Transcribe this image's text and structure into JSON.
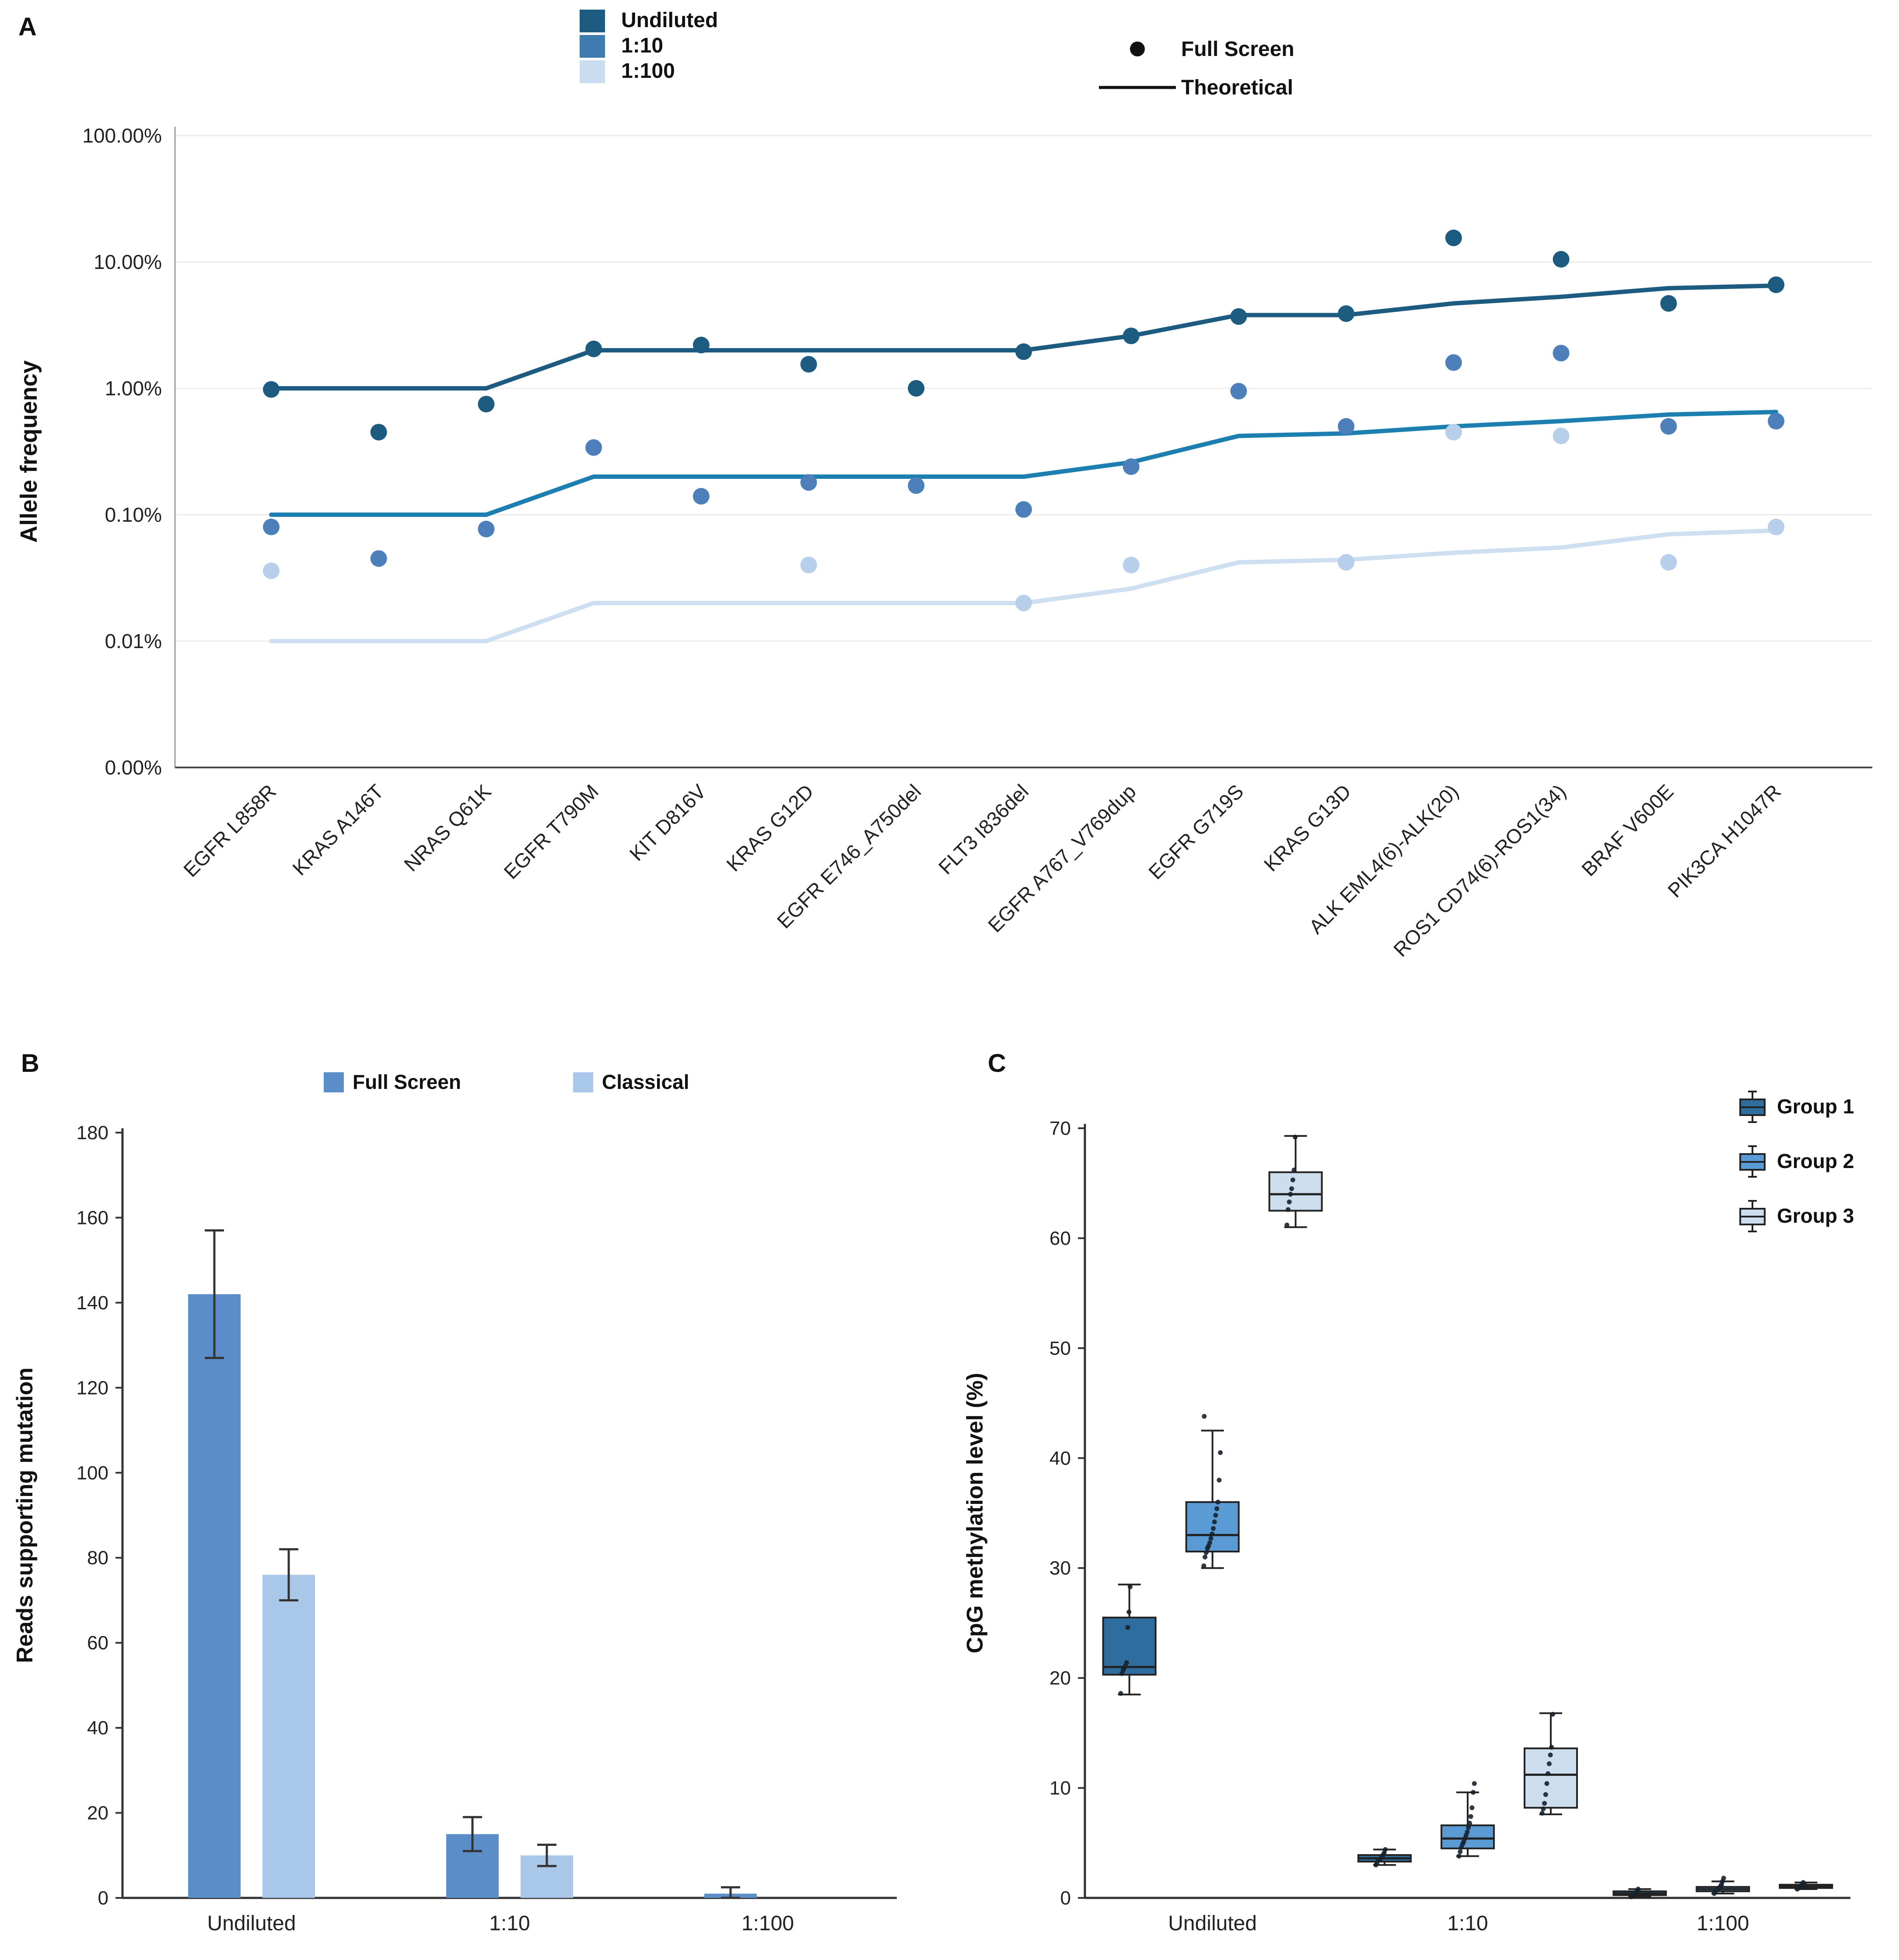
{
  "panels": {
    "a": {
      "label": "A"
    },
    "b": {
      "label": "B"
    },
    "c": {
      "label": "C"
    }
  },
  "chart_data": [
    {
      "panel": "A",
      "type": "scatter",
      "ylabel": "Allele frequency",
      "yscale": "log",
      "grid": true,
      "yticks": [
        {
          "value": 100,
          "label": "100.00%"
        },
        {
          "value": 10,
          "label": "10.00%"
        },
        {
          "value": 1,
          "label": "1.00%"
        },
        {
          "value": 0.1,
          "label": "0.10%"
        },
        {
          "value": 0.01,
          "label": "0.01%"
        },
        {
          "value": 0,
          "label": "0.00%"
        }
      ],
      "categories": [
        "EGFR L858R",
        "KRAS A146T",
        "NRAS Q61K",
        "EGFR T790M",
        "KIT D816V",
        "KRAS G12D",
        "EGFR E746_A750del",
        "FLT3 I836del",
        "EGFR A767_V769dup",
        "EGFR G719S",
        "KRAS G13D",
        "ALK EML4(6)-ALK(20)",
        "ROS1 CD74(6)-ROS1(34)",
        "BRAF V600E",
        "PIK3CA H1047R"
      ],
      "legend": {
        "colors": [
          {
            "label": "Undiluted",
            "color": "#1d5c80"
          },
          {
            "label": "1:10",
            "color": "#3f7ab0"
          },
          {
            "label": "1:100",
            "color": "#c9dcf0"
          }
        ],
        "markers": [
          {
            "label": "Full Screen",
            "type": "dot"
          },
          {
            "label": "Theoretical",
            "type": "line"
          }
        ]
      },
      "series": [
        {
          "name": "Undiluted",
          "dot_color": "#1d5c80",
          "line_color": "#1d5c80",
          "theoretical_pct": [
            1,
            1,
            1,
            2,
            2,
            2,
            2,
            2,
            2.6,
            3.8,
            3.8,
            4.7,
            5.3,
            6.2,
            6.5
          ],
          "measured_pct": [
            0.98,
            0.45,
            0.75,
            2.05,
            2.2,
            1.55,
            1.0,
            1.95,
            2.6,
            3.7,
            3.9,
            15.5,
            10.5,
            4.7,
            6.6
          ]
        },
        {
          "name": "1:10",
          "dot_color": "#4d7fba",
          "line_color": "#1d7fb0",
          "theoretical_pct": [
            0.1,
            0.1,
            0.1,
            0.2,
            0.2,
            0.2,
            0.2,
            0.2,
            0.26,
            0.42,
            0.44,
            0.5,
            0.55,
            0.62,
            0.65
          ],
          "measured_pct": [
            0.08,
            0.045,
            0.077,
            0.34,
            0.14,
            0.18,
            0.17,
            0.11,
            0.24,
            0.95,
            0.5,
            1.6,
            1.9,
            0.5,
            0.55
          ]
        },
        {
          "name": "1:100",
          "dot_color": "#b7cfea",
          "line_color": "#cfdff2",
          "theoretical_pct": [
            0.01,
            0.01,
            0.01,
            0.02,
            0.02,
            0.02,
            0.02,
            0.02,
            0.026,
            0.042,
            0.044,
            0.05,
            0.055,
            0.07,
            0.075
          ],
          "measured_pct": [
            0.036,
            null,
            null,
            null,
            null,
            0.04,
            null,
            0.02,
            0.04,
            null,
            0.042,
            0.45,
            0.42,
            0.042,
            0.08
          ]
        }
      ]
    },
    {
      "panel": "B",
      "type": "bar",
      "ylabel": "Reads supporting mutation",
      "ylim": [
        0,
        180
      ],
      "ytick_step": 20,
      "categories": [
        "Undiluted",
        "1:10",
        "1:100"
      ],
      "series": [
        {
          "name": "Full Screen",
          "color": "#5b8ec9",
          "values": [
            142,
            15,
            1
          ],
          "errors": [
            15,
            4,
            1.5
          ]
        },
        {
          "name": "Classical",
          "color": "#a9c7e8",
          "values": [
            76,
            10,
            0
          ],
          "errors": [
            6,
            2.5,
            0
          ]
        }
      ]
    },
    {
      "panel": "C",
      "type": "boxplot",
      "ylabel": "CpG methylation level (%)",
      "ylim": [
        0,
        70
      ],
      "ytick_step": 10,
      "categories": [
        "Undiluted",
        "1:10",
        "1:100"
      ],
      "legend": [
        {
          "label": "Group 1",
          "color": "#2f6d9e"
        },
        {
          "label": "Group 2",
          "color": "#5b9bd5"
        },
        {
          "label": "Group 3",
          "color": "#ccdded"
        }
      ],
      "groups": [
        {
          "name": "Group 1",
          "color": "#2f6d9e",
          "boxes": [
            {
              "lo": 18.5,
              "q1": 20.3,
              "med": 21.0,
              "q3": 25.5,
              "hi": 28.5,
              "points": [
                18.6,
                20.4,
                20.7,
                20.9,
                21.1,
                21.4,
                24.6,
                26.0,
                28.3
              ]
            },
            {
              "lo": 3.0,
              "q1": 3.3,
              "med": 3.6,
              "q3": 3.9,
              "hi": 4.4,
              "points": [
                3.0,
                3.2,
                3.4,
                3.5,
                3.6,
                3.7,
                3.9,
                4.1,
                4.4
              ]
            },
            {
              "lo": 0.1,
              "q1": 0.25,
              "med": 0.4,
              "q3": 0.6,
              "hi": 0.8,
              "points": [
                0.1,
                0.2,
                0.3,
                0.4,
                0.5,
                0.6,
                0.8
              ]
            }
          ]
        },
        {
          "name": "Group 2",
          "color": "#5b9bd5",
          "boxes": [
            {
              "lo": 30.0,
              "q1": 31.5,
              "med": 33.0,
              "q3": 36.0,
              "hi": 42.5,
              "points": [
                30.2,
                31.0,
                31.4,
                31.8,
                32.0,
                32.3,
                32.7,
                33.1,
                33.6,
                34.2,
                34.8,
                35.4,
                36.0,
                38.0,
                40.5,
                43.8
              ]
            },
            {
              "lo": 3.8,
              "q1": 4.5,
              "med": 5.4,
              "q3": 6.6,
              "hi": 9.6,
              "points": [
                3.8,
                4.2,
                4.6,
                4.9,
                5.1,
                5.4,
                5.7,
                6.0,
                6.4,
                6.8,
                7.4,
                8.2,
                9.6,
                10.4
              ]
            },
            {
              "lo": 0.4,
              "q1": 0.6,
              "med": 0.8,
              "q3": 1.0,
              "hi": 1.5,
              "points": [
                0.4,
                0.6,
                0.7,
                0.8,
                0.9,
                1.0,
                1.2,
                1.5,
                1.8
              ]
            }
          ]
        },
        {
          "name": "Group 3",
          "color": "#ccdded",
          "boxes": [
            {
              "lo": 61.0,
              "q1": 62.5,
              "med": 64.0,
              "q3": 66.0,
              "hi": 69.3,
              "points": [
                61.2,
                62.6,
                63.3,
                64.0,
                64.5,
                65.3,
                66.2,
                69.2
              ]
            },
            {
              "lo": 7.6,
              "q1": 8.2,
              "med": 11.2,
              "q3": 13.6,
              "hi": 16.8,
              "points": [
                7.7,
                8.1,
                8.6,
                9.4,
                10.4,
                11.3,
                12.2,
                13.0,
                13.7,
                16.7
              ]
            },
            {
              "lo": 0.8,
              "q1": 0.9,
              "med": 1.05,
              "q3": 1.2,
              "hi": 1.4,
              "points": [
                0.8,
                0.9,
                1.0,
                1.1,
                1.2,
                1.4
              ]
            }
          ]
        }
      ]
    }
  ]
}
